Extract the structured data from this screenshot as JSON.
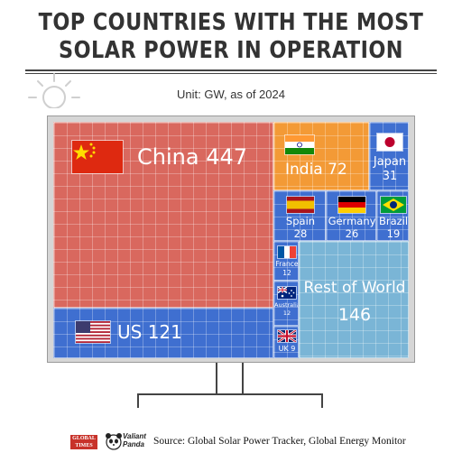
{
  "title_line1": "TOP COUNTRIES WITH THE MOST",
  "title_line2": "SOLAR POWER IN OPERATION",
  "unit": "Unit: GW,  as of 2024",
  "source": "Source: Global Solar Power Tracker, Global Energy Monitor",
  "logos": {
    "global_times": "GLOBAL TIMES",
    "valiant_panda": "Valiant Panda"
  },
  "colors": {
    "china": "#d9685e",
    "us": "#3f6fd0",
    "india": "#f39a36",
    "small_blue": "#3f6fd0",
    "rest": "#7ab5d6"
  },
  "chart_data": {
    "type": "treemap",
    "unit": "GW",
    "items": [
      {
        "name": "China",
        "value": 447,
        "flag": "china-flag"
      },
      {
        "name": "US",
        "value": 121,
        "flag": "us-flag"
      },
      {
        "name": "India",
        "value": 72,
        "flag": "india-flag"
      },
      {
        "name": "Japan",
        "value": 31,
        "flag": "japan-flag"
      },
      {
        "name": "Spain",
        "value": 28,
        "flag": "spain-flag"
      },
      {
        "name": "Germany",
        "value": 26,
        "flag": "germany-flag"
      },
      {
        "name": "Brazil",
        "value": 19,
        "flag": "brazil-flag"
      },
      {
        "name": "France",
        "value": 12,
        "flag": "france-flag"
      },
      {
        "name": "Australia",
        "value": 12,
        "flag": "australia-flag"
      },
      {
        "name": "UK",
        "value": 9,
        "flag": "uk-flag"
      },
      {
        "name": "Rest of World",
        "value": 146
      }
    ]
  }
}
